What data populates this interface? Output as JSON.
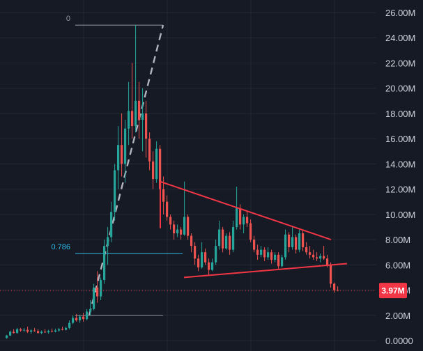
{
  "colors": {
    "background": "#161a25",
    "grid": "#232834",
    "up": "#26a69a",
    "down": "#ef5350",
    "axis_text": "#d1d4dc",
    "fib_line": "#9598a1",
    "fib_786": "#2ebbe8",
    "trendline": "#f23645",
    "dashed_projection": "#b2b5be",
    "price_tag": "#f23645"
  },
  "chart_data": {
    "type": "candlestick",
    "grid": true,
    "y_axis_position": "right",
    "ylim": [
      0,
      27000000
    ],
    "y_ticks": [
      "0.0000",
      "2.00M",
      "4.00M",
      "6.00M",
      "8.00M",
      "10.00M",
      "12.00M",
      "14.00M",
      "16.00M",
      "18.00M",
      "20.00M",
      "22.00M",
      "24.00M",
      "26.00M"
    ],
    "y_tick_values": [
      0,
      2000000,
      4000000,
      6000000,
      8000000,
      10000000,
      12000000,
      14000000,
      16000000,
      18000000,
      20000000,
      22000000,
      24000000,
      26000000
    ],
    "current_price": {
      "label": "3.97M",
      "value": 3970000
    },
    "fib_levels": [
      {
        "label": "0",
        "value": 25000000
      },
      {
        "label": "0.786",
        "value": 6900000
      },
      {
        "label": "",
        "value": 2000000
      }
    ],
    "candles": [
      {
        "o": 0.2,
        "h": 0.45,
        "l": 0.15,
        "c": 0.4
      },
      {
        "o": 0.4,
        "h": 0.8,
        "l": 0.35,
        "c": 0.7
      },
      {
        "o": 0.7,
        "h": 0.9,
        "l": 0.55,
        "c": 0.6
      },
      {
        "o": 0.6,
        "h": 1.0,
        "l": 0.55,
        "c": 0.9
      },
      {
        "o": 0.9,
        "h": 1.0,
        "l": 0.7,
        "c": 0.8
      },
      {
        "o": 0.8,
        "h": 1.0,
        "l": 0.7,
        "c": 0.85
      },
      {
        "o": 0.85,
        "h": 1.1,
        "l": 0.6,
        "c": 0.7
      },
      {
        "o": 0.7,
        "h": 0.9,
        "l": 0.55,
        "c": 0.8
      },
      {
        "o": 0.8,
        "h": 1.0,
        "l": 0.7,
        "c": 0.75
      },
      {
        "o": 0.75,
        "h": 0.9,
        "l": 0.55,
        "c": 0.6
      },
      {
        "o": 0.6,
        "h": 0.8,
        "l": 0.5,
        "c": 0.7
      },
      {
        "o": 0.7,
        "h": 0.9,
        "l": 0.6,
        "c": 0.65
      },
      {
        "o": 0.65,
        "h": 0.85,
        "l": 0.55,
        "c": 0.75
      },
      {
        "o": 0.75,
        "h": 0.95,
        "l": 0.65,
        "c": 0.7
      },
      {
        "o": 0.7,
        "h": 0.95,
        "l": 0.65,
        "c": 0.8
      },
      {
        "o": 0.8,
        "h": 1.0,
        "l": 0.7,
        "c": 0.9
      },
      {
        "o": 0.9,
        "h": 1.1,
        "l": 0.8,
        "c": 0.85
      },
      {
        "o": 0.85,
        "h": 1.1,
        "l": 0.8,
        "c": 1.0
      },
      {
        "o": 1.0,
        "h": 1.6,
        "l": 0.9,
        "c": 1.4
      },
      {
        "o": 1.4,
        "h": 2.0,
        "l": 1.3,
        "c": 1.8
      },
      {
        "o": 1.8,
        "h": 2.1,
        "l": 1.5,
        "c": 1.6
      },
      {
        "o": 1.6,
        "h": 2.0,
        "l": 1.4,
        "c": 1.9
      },
      {
        "o": 1.9,
        "h": 2.2,
        "l": 1.5,
        "c": 1.7
      },
      {
        "o": 1.7,
        "h": 2.5,
        "l": 1.6,
        "c": 2.3
      },
      {
        "o": 2.3,
        "h": 3.2,
        "l": 2.0,
        "c": 2.5
      },
      {
        "o": 2.5,
        "h": 4.5,
        "l": 2.4,
        "c": 4.2
      },
      {
        "o": 4.2,
        "h": 5.5,
        "l": 3.0,
        "c": 3.5
      },
      {
        "o": 3.5,
        "h": 5.0,
        "l": 3.2,
        "c": 4.8
      },
      {
        "o": 4.8,
        "h": 8.0,
        "l": 4.5,
        "c": 7.5
      },
      {
        "o": 7.5,
        "h": 9.0,
        "l": 6.0,
        "c": 8.2
      },
      {
        "o": 8.2,
        "h": 11.0,
        "l": 7.8,
        "c": 10.2
      },
      {
        "o": 10.2,
        "h": 14.0,
        "l": 9.5,
        "c": 13.5
      },
      {
        "o": 13.5,
        "h": 17.0,
        "l": 12.0,
        "c": 15.5
      },
      {
        "o": 15.5,
        "h": 18.0,
        "l": 13.0,
        "c": 14.0
      },
      {
        "o": 14.0,
        "h": 17.5,
        "l": 12.5,
        "c": 16.8
      },
      {
        "o": 16.8,
        "h": 20.5,
        "l": 15.5,
        "c": 18.2
      },
      {
        "o": 18.2,
        "h": 22.0,
        "l": 16.0,
        "c": 17.0
      },
      {
        "o": 17.0,
        "h": 25.0,
        "l": 16.5,
        "c": 19.0
      },
      {
        "o": 19.0,
        "h": 20.5,
        "l": 16.0,
        "c": 17.5
      },
      {
        "o": 17.5,
        "h": 20.0,
        "l": 15.0,
        "c": 18.0
      },
      {
        "o": 18.0,
        "h": 19.0,
        "l": 14.5,
        "c": 16.0
      },
      {
        "o": 16.0,
        "h": 16.5,
        "l": 13.5,
        "c": 14.2
      },
      {
        "o": 14.2,
        "h": 15.0,
        "l": 12.0,
        "c": 12.8
      },
      {
        "o": 12.8,
        "h": 15.8,
        "l": 12.5,
        "c": 15.2
      },
      {
        "o": 15.2,
        "h": 15.5,
        "l": 11.5,
        "c": 12.0
      },
      {
        "o": 12.0,
        "h": 13.0,
        "l": 10.0,
        "c": 11.0
      },
      {
        "o": 11.0,
        "h": 11.5,
        "l": 9.5,
        "c": 9.8
      },
      {
        "o": 9.8,
        "h": 10.0,
        "l": 8.8,
        "c": 9.2
      },
      {
        "o": 9.2,
        "h": 9.5,
        "l": 8.0,
        "c": 8.5
      },
      {
        "o": 8.5,
        "h": 9.2,
        "l": 8.2,
        "c": 8.8
      },
      {
        "o": 8.8,
        "h": 9.0,
        "l": 8.0,
        "c": 8.4
      },
      {
        "o": 8.4,
        "h": 12.6,
        "l": 8.3,
        "c": 9.8
      },
      {
        "o": 9.8,
        "h": 10.0,
        "l": 8.0,
        "c": 8.3
      },
      {
        "o": 8.3,
        "h": 8.5,
        "l": 7.0,
        "c": 7.5
      },
      {
        "o": 7.5,
        "h": 7.8,
        "l": 6.0,
        "c": 6.5
      },
      {
        "o": 6.5,
        "h": 6.8,
        "l": 5.5,
        "c": 5.8
      },
      {
        "o": 5.8,
        "h": 7.8,
        "l": 5.7,
        "c": 7.0
      },
      {
        "o": 7.0,
        "h": 7.3,
        "l": 6.0,
        "c": 6.2
      },
      {
        "o": 6.2,
        "h": 6.5,
        "l": 5.2,
        "c": 5.6
      },
      {
        "o": 5.6,
        "h": 6.5,
        "l": 5.5,
        "c": 6.2
      },
      {
        "o": 6.2,
        "h": 8.0,
        "l": 6.0,
        "c": 7.5
      },
      {
        "o": 7.5,
        "h": 9.5,
        "l": 7.2,
        "c": 8.8
      },
      {
        "o": 8.8,
        "h": 9.0,
        "l": 7.0,
        "c": 7.3
      },
      {
        "o": 7.3,
        "h": 8.5,
        "l": 7.2,
        "c": 8.3
      },
      {
        "o": 8.3,
        "h": 8.6,
        "l": 6.8,
        "c": 7.2
      },
      {
        "o": 7.2,
        "h": 9.5,
        "l": 7.0,
        "c": 9.0
      },
      {
        "o": 9.0,
        "h": 12.2,
        "l": 8.8,
        "c": 10.5
      },
      {
        "o": 10.5,
        "h": 10.8,
        "l": 8.8,
        "c": 9.2
      },
      {
        "o": 9.2,
        "h": 10.0,
        "l": 8.5,
        "c": 9.8
      },
      {
        "o": 9.8,
        "h": 10.2,
        "l": 9.0,
        "c": 9.3
      },
      {
        "o": 9.3,
        "h": 9.6,
        "l": 7.8,
        "c": 8.0
      },
      {
        "o": 8.0,
        "h": 8.3,
        "l": 7.0,
        "c": 7.2
      },
      {
        "o": 7.2,
        "h": 7.6,
        "l": 6.4,
        "c": 6.8
      },
      {
        "o": 6.8,
        "h": 7.5,
        "l": 6.6,
        "c": 7.2
      },
      {
        "o": 7.2,
        "h": 7.4,
        "l": 6.3,
        "c": 6.6
      },
      {
        "o": 6.6,
        "h": 7.4,
        "l": 6.4,
        "c": 7.0
      },
      {
        "o": 7.0,
        "h": 7.2,
        "l": 6.1,
        "c": 6.4
      },
      {
        "o": 6.4,
        "h": 7.0,
        "l": 6.2,
        "c": 6.8
      },
      {
        "o": 6.8,
        "h": 7.0,
        "l": 5.6,
        "c": 5.9
      },
      {
        "o": 5.9,
        "h": 6.8,
        "l": 5.8,
        "c": 6.6
      },
      {
        "o": 6.6,
        "h": 8.8,
        "l": 6.4,
        "c": 8.4
      },
      {
        "o": 8.4,
        "h": 8.6,
        "l": 7.0,
        "c": 7.4
      },
      {
        "o": 7.4,
        "h": 9.0,
        "l": 7.2,
        "c": 8.2
      },
      {
        "o": 8.2,
        "h": 8.4,
        "l": 6.9,
        "c": 7.2
      },
      {
        "o": 7.2,
        "h": 8.8,
        "l": 7.0,
        "c": 8.5
      },
      {
        "o": 8.5,
        "h": 8.7,
        "l": 7.1,
        "c": 7.4
      },
      {
        "o": 7.4,
        "h": 7.8,
        "l": 6.8,
        "c": 7.0
      },
      {
        "o": 7.0,
        "h": 7.5,
        "l": 6.5,
        "c": 6.8
      },
      {
        "o": 6.8,
        "h": 7.2,
        "l": 6.4,
        "c": 6.6
      },
      {
        "o": 6.6,
        "h": 7.0,
        "l": 6.3,
        "c": 6.5
      },
      {
        "o": 6.5,
        "h": 6.9,
        "l": 6.2,
        "c": 6.7
      },
      {
        "o": 6.7,
        "h": 7.5,
        "l": 6.4,
        "c": 6.5
      },
      {
        "o": 6.5,
        "h": 6.8,
        "l": 5.8,
        "c": 6.0
      },
      {
        "o": 6.0,
        "h": 6.2,
        "l": 4.2,
        "c": 4.5
      },
      {
        "o": 4.5,
        "h": 4.6,
        "l": 3.8,
        "c": 4.0
      },
      {
        "o": 4.0,
        "h": 4.3,
        "l": 3.9,
        "c": 3.97
      }
    ],
    "candle_value_unit": "M",
    "trendlines": [
      {
        "name": "upper",
        "points": [
          [
            51,
            12.6
          ],
          [
            95,
            8.0
          ]
        ]
      },
      {
        "name": "lower",
        "points": [
          [
            52,
            5.0
          ],
          [
            95,
            6.1
          ]
        ]
      }
    ],
    "projection": {
      "points": [
        [
          24,
          2.0
        ],
        [
          49,
          25.0
        ]
      ]
    }
  }
}
